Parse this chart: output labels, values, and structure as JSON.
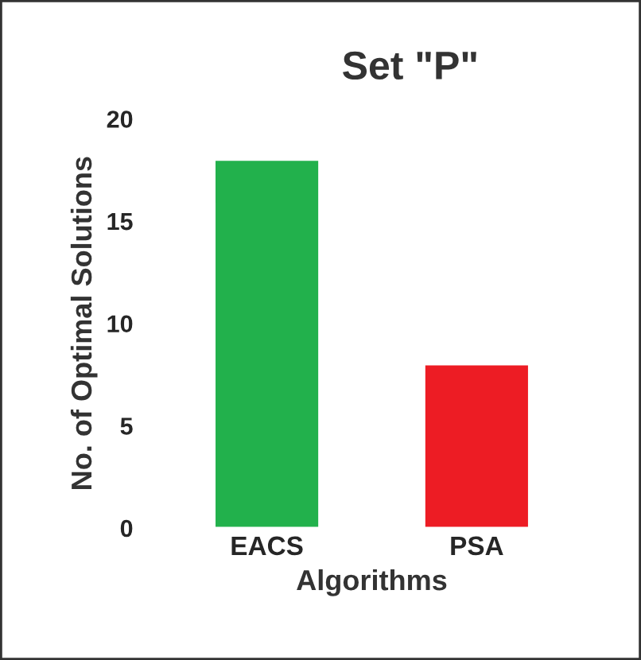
{
  "chart_data": {
    "type": "bar",
    "title": "Set \"P\"",
    "xlabel": "Algorithms",
    "ylabel": "No. of Optimal Solutions",
    "categories": [
      "EACS",
      "PSA"
    ],
    "values": [
      18,
      8
    ],
    "colors": [
      "#22b14c",
      "#ed1c24"
    ],
    "ylim": [
      0,
      20
    ],
    "yticks": [
      0,
      5,
      10,
      15,
      20
    ],
    "grid": false,
    "legend": false
  }
}
